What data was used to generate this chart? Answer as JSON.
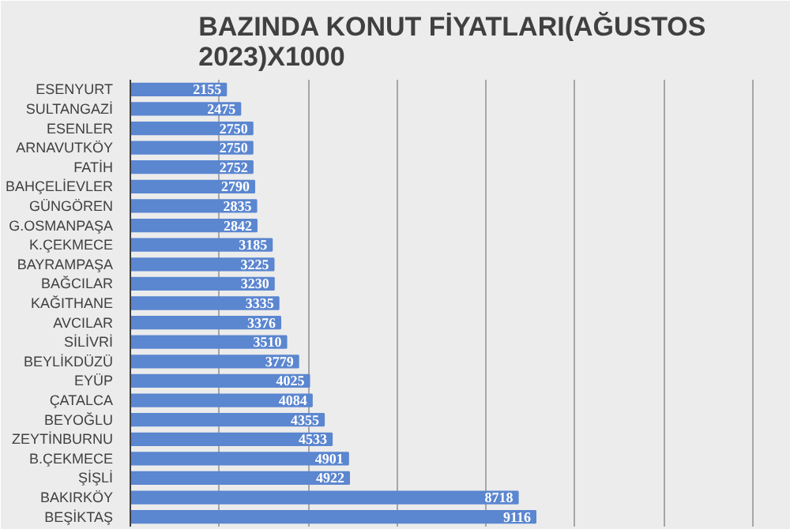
{
  "chart_data": {
    "type": "bar",
    "orientation": "horizontal",
    "title": "BAZINDA KONUT FİYATLARI(AĞUSTOS 2023)X1000",
    "categories": [
      "ESENYURT",
      "SULTANGAZİ",
      "ESENLER",
      "ARNAVUTKÖY",
      "FATİH",
      "BAHÇELİEVLER",
      "GÜNGÖREN",
      "G.OSMANPAŞA",
      "K.ÇEKMECE",
      "BAYRAMPAŞA",
      "BAĞCILAR",
      "KAĞITHANE",
      "AVCILAR",
      "SİLİVRİ",
      "BEYLİKDÜZÜ",
      "EYÜP",
      "ÇATALCA",
      "BEYOĞLU",
      "ZEYTİNBURNU",
      "B.ÇEKMECE",
      "ŞİŞLİ",
      "BAKIRKÖY",
      "BEŞİKTAŞ"
    ],
    "values": [
      2155,
      2475,
      2750,
      2750,
      2752,
      2790,
      2835,
      2842,
      3185,
      3225,
      3230,
      3335,
      3376,
      3510,
      3779,
      4025,
      4084,
      4355,
      4533,
      4901,
      4922,
      8718,
      9116
    ],
    "color": "#5b86d0",
    "data_labels": true,
    "grid": "x",
    "tick_labels": "y",
    "xlim": [
      0,
      14500
    ],
    "xticks": [
      {
        "value": 0,
        "label": null
      },
      {
        "value": 2000,
        "label": null
      },
      {
        "value": 4000,
        "label": null
      },
      {
        "value": 6000,
        "label": null
      },
      {
        "value": 8000,
        "label": null
      },
      {
        "value": 10000,
        "label": null
      },
      {
        "value": 12000,
        "label": null
      },
      {
        "value": 14000,
        "label": null
      }
    ]
  }
}
